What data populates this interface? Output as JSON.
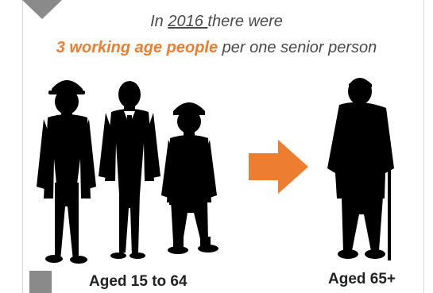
{
  "headline": {
    "line1_prefix": "In ",
    "line1_year": "2016 ",
    "line1_suffix": "there were",
    "line2_highlight": "3 working age people",
    "line2_rest": " per one senior person"
  },
  "groups": {
    "working_age_label": "Aged 15 to 64",
    "senior_label": "Aged 65+"
  },
  "colors": {
    "accent": "#ed7d31",
    "silhouette": "#000000",
    "text": "#4a4a4a",
    "corner": "#8a8a8a"
  },
  "icons": [
    "down-arrow-icon",
    "right-arrow-icon"
  ]
}
